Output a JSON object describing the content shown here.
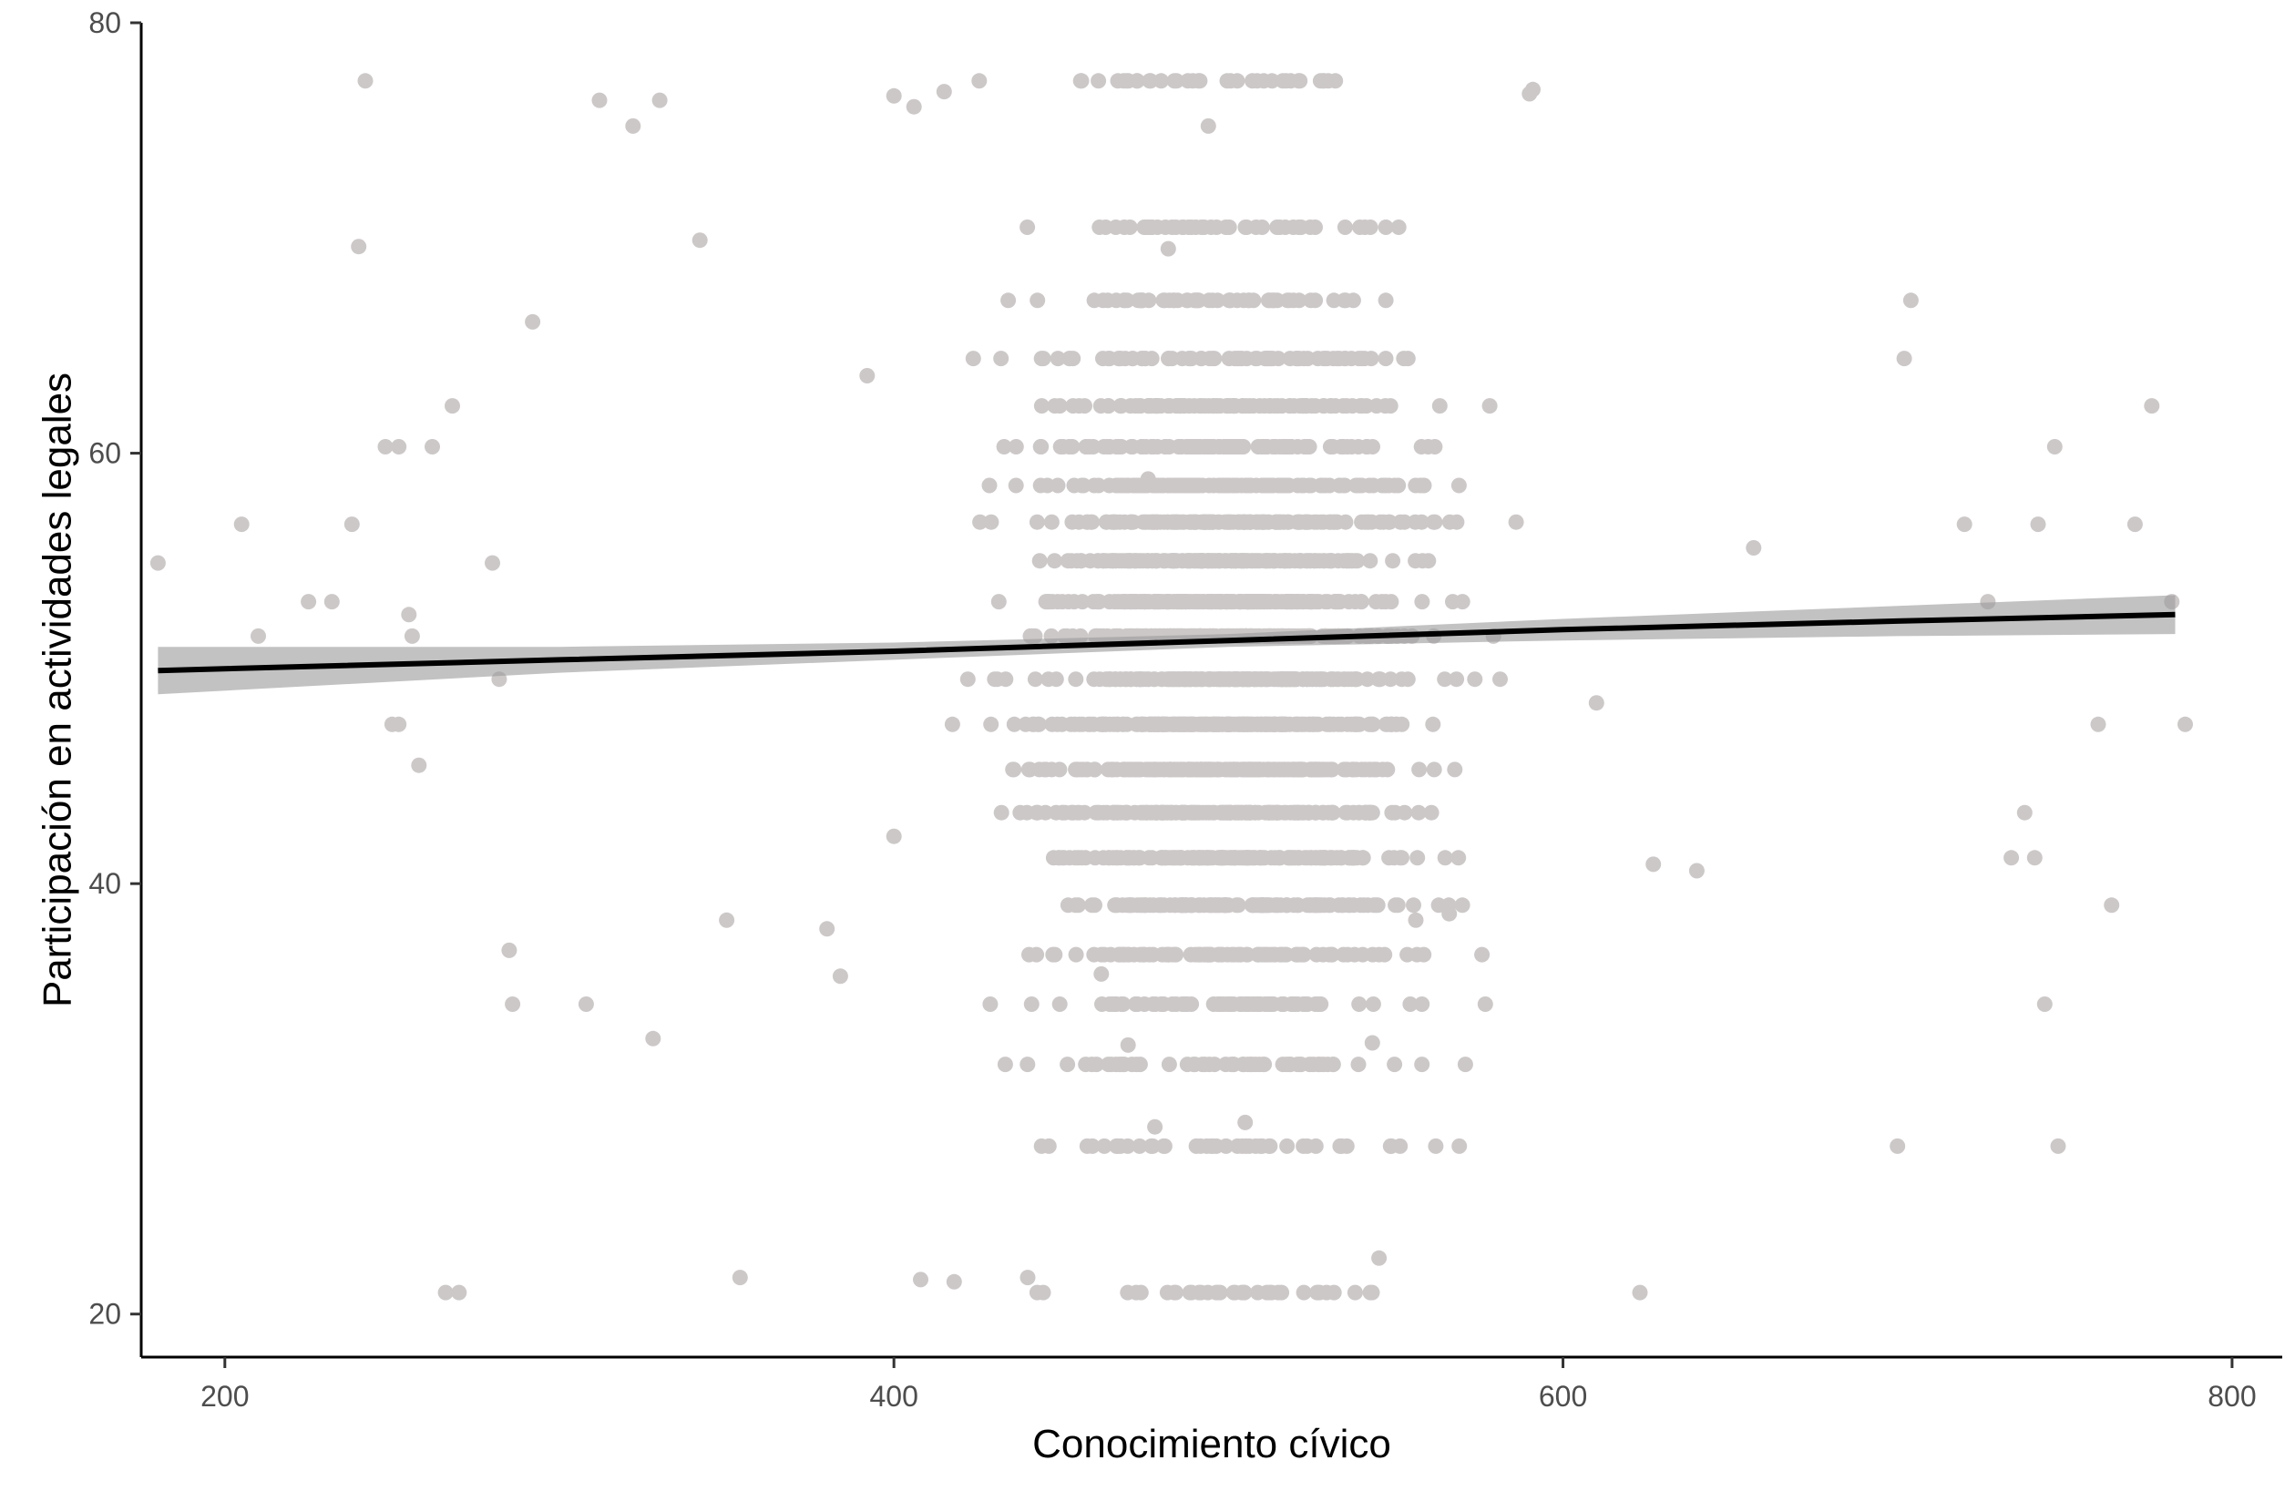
{
  "chart_data": {
    "type": "scatter",
    "xlabel": "Conocimiento cívico",
    "ylabel": "Participación en actividades legales",
    "xlim": [
      175,
      815
    ],
    "ylim": [
      18,
      80
    ],
    "x_ticks": [
      200,
      400,
      600,
      800
    ],
    "y_ticks": [
      20,
      40,
      60,
      80
    ],
    "grid": false,
    "legend": "none",
    "point_color": "#cdc8c8",
    "line_color": "#000000",
    "band_color": "#999999",
    "y_levels": [
      21.0,
      27.8,
      31.6,
      34.4,
      36.7,
      39.0,
      41.2,
      43.3,
      45.3,
      47.4,
      49.5,
      51.5,
      53.1,
      55.0,
      56.8,
      58.5,
      60.3,
      62.2,
      64.4,
      67.1,
      70.5,
      77.3
    ],
    "sample_points": [
      [
        180,
        54.9
      ],
      [
        205,
        56.7
      ],
      [
        210,
        51.5
      ],
      [
        225,
        53.1
      ],
      [
        232,
        53.1
      ],
      [
        238,
        56.7
      ],
      [
        240,
        69.6
      ],
      [
        242,
        77.3
      ],
      [
        248,
        60.3
      ],
      [
        252,
        60.3
      ],
      [
        262,
        60.3
      ],
      [
        250,
        47.4
      ],
      [
        252,
        47.4
      ],
      [
        255,
        52.5
      ],
      [
        258,
        45.5
      ],
      [
        256,
        51.5
      ],
      [
        266,
        21.0
      ],
      [
        270,
        21.0
      ],
      [
        268,
        62.2
      ],
      [
        280,
        54.9
      ],
      [
        282,
        49.5
      ],
      [
        285,
        36.9
      ],
      [
        286,
        34.4
      ],
      [
        292,
        66.1
      ],
      [
        308,
        34.4
      ],
      [
        312,
        76.4
      ],
      [
        322,
        75.2
      ],
      [
        328,
        32.8
      ],
      [
        330,
        76.4
      ],
      [
        342,
        69.9
      ],
      [
        350,
        38.3
      ],
      [
        354,
        21.7
      ],
      [
        380,
        37.9
      ],
      [
        384,
        35.7
      ],
      [
        392,
        63.6
      ],
      [
        400,
        42.2
      ],
      [
        400,
        76.6
      ],
      [
        406,
        76.1
      ],
      [
        408,
        21.6
      ],
      [
        415,
        76.8
      ],
      [
        418,
        21.5
      ],
      [
        440,
        21.7
      ],
      [
        462,
        35.8
      ],
      [
        470,
        32.5
      ],
      [
        476,
        58.8
      ],
      [
        478,
        28.7
      ],
      [
        482,
        69.5
      ],
      [
        494,
        75.2
      ],
      [
        505,
        28.9
      ],
      [
        543,
        32.6
      ],
      [
        545,
        22.6
      ],
      [
        556,
        38.3
      ],
      [
        566,
        38.6
      ],
      [
        590,
        76.7
      ],
      [
        591,
        76.9
      ],
      [
        610,
        48.4
      ],
      [
        623,
        21.0
      ],
      [
        627,
        40.9
      ],
      [
        640,
        40.6
      ],
      [
        657,
        55.6
      ],
      [
        700,
        27.8
      ],
      [
        702,
        64.4
      ],
      [
        704,
        67.1
      ],
      [
        720,
        56.7
      ],
      [
        727,
        53.1
      ],
      [
        734,
        41.2
      ],
      [
        738,
        43.3
      ],
      [
        741,
        41.2
      ],
      [
        742,
        56.7
      ],
      [
        744,
        34.4
      ],
      [
        747,
        60.3
      ],
      [
        748,
        27.8
      ],
      [
        760,
        47.4
      ],
      [
        764,
        39.0
      ],
      [
        771,
        56.7
      ],
      [
        776,
        62.2
      ],
      [
        782,
        53.1
      ],
      [
        786,
        47.4
      ]
    ],
    "series": [
      {
        "type": "smooth",
        "x": [
          180,
          300,
          400,
          500,
          600,
          700,
          783
        ],
        "y": [
          49.9,
          50.4,
          50.8,
          51.3,
          51.8,
          52.2,
          52.5
        ],
        "ci_lower": [
          48.8,
          49.8,
          50.4,
          51.0,
          51.3,
          51.5,
          51.6
        ],
        "ci_upper": [
          51.0,
          51.0,
          51.2,
          51.6,
          52.3,
          52.9,
          53.4
        ]
      }
    ]
  }
}
